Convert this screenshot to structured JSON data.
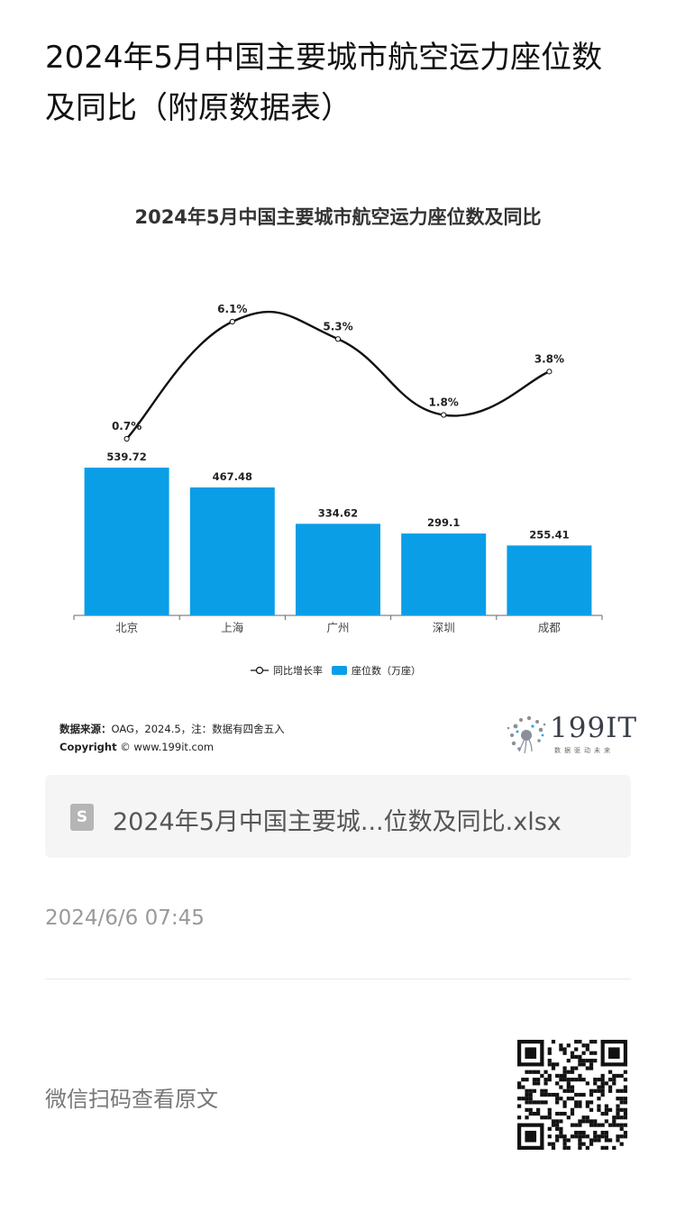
{
  "article": {
    "title": "2024年5月中国主要城市航空运力座位数及同比（附原数据表）",
    "publish_date": "2024/6/6 07:45",
    "scan_text": "微信扫码查看原文"
  },
  "attachment": {
    "icon": "spreadsheet-file-icon",
    "icon_letter": "S",
    "file_name": "2024年5月中国主要城...位数及同比.xlsx"
  },
  "chart_data": {
    "type": "bar",
    "title": "2024年5月中国主要城市航空运力座位数及同比",
    "categories": [
      "北京",
      "上海",
      "广州",
      "深圳",
      "成都"
    ],
    "series": [
      {
        "name": "座位数（万座）",
        "type": "bar",
        "values": [
          539.72,
          467.48,
          334.62,
          299.1,
          255.41
        ],
        "labels": [
          "539.72",
          "467.48",
          "334.62",
          "299.1",
          "255.41"
        ],
        "color": "#0a9ee6"
      },
      {
        "name": "同比增长率",
        "type": "line",
        "values": [
          0.7,
          6.1,
          5.3,
          1.8,
          3.8
        ],
        "labels": [
          "0.7%",
          "6.1%",
          "5.3%",
          "1.8%",
          "3.8%"
        ],
        "unit": "%",
        "color": "#111111"
      }
    ],
    "legend": [
      "同比增长率",
      "座位数（万座）"
    ],
    "legend_position": "bottom",
    "grid": false
  },
  "source": {
    "label": "数据来源：",
    "text": "OAG，2024.5，注：数据有四舍五入",
    "copyright_label": "Copyright",
    "copyright_text": "© www.199it.com"
  },
  "brand": {
    "name": "199IT",
    "tagline": "数据驱动未来"
  },
  "colors": {
    "bar": "#0a9ee6",
    "line": "#111111",
    "attachment_bg": "#f5f5f5"
  }
}
